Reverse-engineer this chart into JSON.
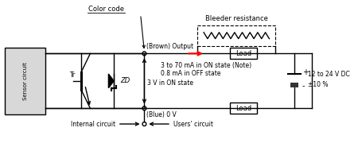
{
  "bg_color": "#ffffff",
  "line_color": "#000000",
  "red_color": "#ff0000",
  "sensor_label": "Sensor circuit",
  "title_color_code": "Color code",
  "title_bleeder": "Bleeder resistance",
  "brown_label": "(Brown) Output",
  "blue_label": "(Blue) 0 V",
  "load1_label": "Load",
  "load2_label": "Load",
  "tr_label": "Tr",
  "zd_label": "ZD",
  "text1": "3 to 70 mA in ON state (Note)",
  "text2": "0.8 mA in OFF state",
  "text3": "3 V in ON state",
  "volt_label": "12 to 24 V DC",
  "volt_tol": "±10 %",
  "internal_label": "Internal circuit",
  "users_label": "Users’ circuit",
  "plus_label": "+",
  "minus_label": "-"
}
